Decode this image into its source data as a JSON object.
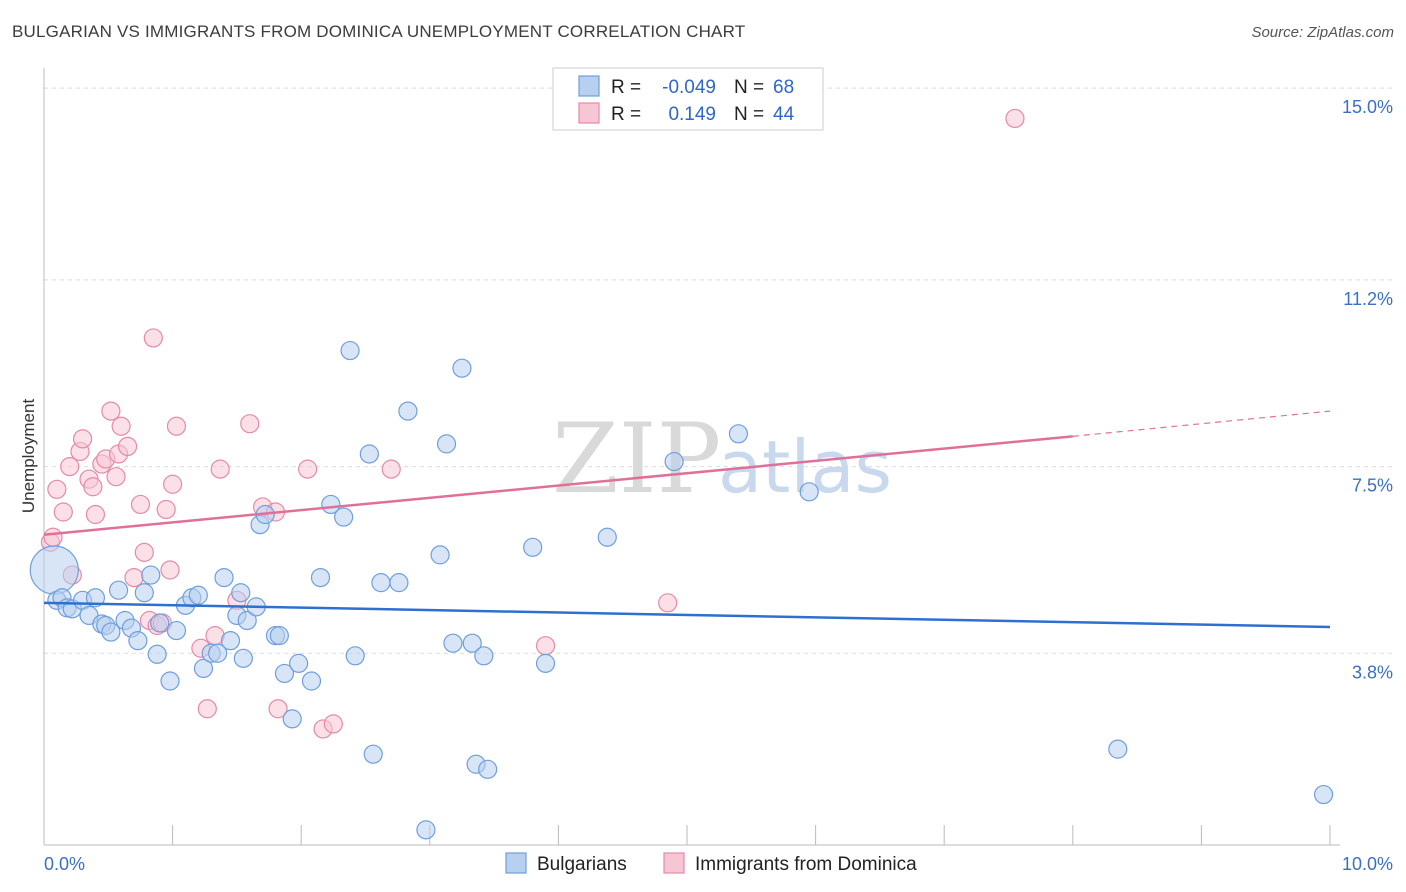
{
  "header": {
    "title": "BULGARIAN VS IMMIGRANTS FROM DOMINICA UNEMPLOYMENT CORRELATION CHART",
    "source": "Source: ZipAtlas.com"
  },
  "watermark": {
    "zip": "ZIP",
    "atlas": "atlas"
  },
  "colors": {
    "blue_fill": "#b8d0f0",
    "blue_stroke": "#6f9fdc",
    "blue_line": "#2f6fd0",
    "pink_fill": "#f7c6d5",
    "pink_stroke": "#e68aa8",
    "pink_line": "#e0709a",
    "grid": "#dcdcdc",
    "tick_text": "#3a6fc4"
  },
  "legend": {
    "rows": [
      {
        "r_label": "R =",
        "r_value": "-0.049",
        "n_label": "N =",
        "n_value": "68"
      },
      {
        "r_label": "R =",
        "r_value": "0.149",
        "n_label": "N =",
        "n_value": "44"
      }
    ]
  },
  "chart_data": {
    "type": "scatter",
    "title": "BULGARIAN VS IMMIGRANTS FROM DOMINICA UNEMPLOYMENT CORRELATION CHART",
    "xlabel": "",
    "ylabel": "Unemployment",
    "xlim": [
      0,
      10
    ],
    "ylim": [
      0,
      15.4
    ],
    "x_tick_labels": {
      "left": "0.0%",
      "right": "10.0%"
    },
    "y_ticks": [
      {
        "value": 3.8,
        "label": "3.8%"
      },
      {
        "value": 7.5,
        "label": "7.5%"
      },
      {
        "value": 11.2,
        "label": "11.2%"
      },
      {
        "value": 15.0,
        "label": "15.0%"
      }
    ],
    "series": [
      {
        "name": "Bulgarians",
        "r": -0.049,
        "n": 68,
        "trend": {
          "x": [
            0,
            10
          ],
          "y": [
            4.8,
            4.32
          ]
        },
        "points": [
          {
            "x": 0.08,
            "y": 5.45,
            "big": true
          },
          {
            "x": 0.1,
            "y": 4.85
          },
          {
            "x": 0.14,
            "y": 4.9
          },
          {
            "x": 0.18,
            "y": 4.7
          },
          {
            "x": 0.22,
            "y": 4.68
          },
          {
            "x": 0.3,
            "y": 4.85
          },
          {
            "x": 0.35,
            "y": 4.55
          },
          {
            "x": 0.4,
            "y": 4.9
          },
          {
            "x": 0.45,
            "y": 4.38
          },
          {
            "x": 0.48,
            "y": 4.35
          },
          {
            "x": 0.52,
            "y": 4.22
          },
          {
            "x": 0.58,
            "y": 5.05
          },
          {
            "x": 0.63,
            "y": 4.45
          },
          {
            "x": 0.68,
            "y": 4.3
          },
          {
            "x": 0.73,
            "y": 4.05
          },
          {
            "x": 0.78,
            "y": 5.0
          },
          {
            "x": 0.83,
            "y": 5.35
          },
          {
            "x": 0.88,
            "y": 3.78
          },
          {
            "x": 0.9,
            "y": 4.4
          },
          {
            "x": 0.98,
            "y": 3.25
          },
          {
            "x": 1.03,
            "y": 4.25
          },
          {
            "x": 1.1,
            "y": 4.75
          },
          {
            "x": 1.15,
            "y": 4.9
          },
          {
            "x": 1.2,
            "y": 4.95
          },
          {
            "x": 1.24,
            "y": 3.5
          },
          {
            "x": 1.3,
            "y": 3.8
          },
          {
            "x": 1.35,
            "y": 3.8
          },
          {
            "x": 1.4,
            "y": 5.3
          },
          {
            "x": 1.45,
            "y": 4.05
          },
          {
            "x": 1.5,
            "y": 4.55
          },
          {
            "x": 1.53,
            "y": 5.0
          },
          {
            "x": 1.55,
            "y": 3.7
          },
          {
            "x": 1.58,
            "y": 4.45
          },
          {
            "x": 1.65,
            "y": 4.72
          },
          {
            "x": 1.68,
            "y": 6.35
          },
          {
            "x": 1.72,
            "y": 6.55
          },
          {
            "x": 1.8,
            "y": 4.15
          },
          {
            "x": 1.83,
            "y": 4.15
          },
          {
            "x": 1.87,
            "y": 3.4
          },
          {
            "x": 1.93,
            "y": 2.5
          },
          {
            "x": 1.98,
            "y": 3.6
          },
          {
            "x": 2.08,
            "y": 3.25
          },
          {
            "x": 2.15,
            "y": 5.3
          },
          {
            "x": 2.23,
            "y": 6.75
          },
          {
            "x": 2.33,
            "y": 6.5
          },
          {
            "x": 2.38,
            "y": 9.8
          },
          {
            "x": 2.42,
            "y": 3.75
          },
          {
            "x": 2.53,
            "y": 7.75
          },
          {
            "x": 2.56,
            "y": 1.8
          },
          {
            "x": 2.62,
            "y": 5.2
          },
          {
            "x": 2.76,
            "y": 5.2
          },
          {
            "x": 2.83,
            "y": 8.6
          },
          {
            "x": 2.97,
            "y": 0.3
          },
          {
            "x": 3.08,
            "y": 5.75
          },
          {
            "x": 3.13,
            "y": 7.95
          },
          {
            "x": 3.18,
            "y": 4.0
          },
          {
            "x": 3.25,
            "y": 9.45
          },
          {
            "x": 3.33,
            "y": 4.0
          },
          {
            "x": 3.36,
            "y": 1.6
          },
          {
            "x": 3.42,
            "y": 3.75
          },
          {
            "x": 3.45,
            "y": 1.5
          },
          {
            "x": 3.8,
            "y": 5.9
          },
          {
            "x": 3.9,
            "y": 3.6
          },
          {
            "x": 4.38,
            "y": 6.1
          },
          {
            "x": 4.9,
            "y": 7.6
          },
          {
            "x": 5.4,
            "y": 8.15
          },
          {
            "x": 5.95,
            "y": 7.0
          },
          {
            "x": 8.35,
            "y": 1.9
          },
          {
            "x": 9.95,
            "y": 1.0
          }
        ]
      },
      {
        "name": "Immigrants from Dominica",
        "r": 0.149,
        "n": 44,
        "trend": {
          "x": [
            0,
            8.0
          ],
          "y": [
            6.15,
            8.1
          ]
        },
        "trend_dashed": {
          "x": [
            8.0,
            10.0
          ],
          "y": [
            8.1,
            8.6
          ]
        },
        "points": [
          {
            "x": 0.05,
            "y": 6.0
          },
          {
            "x": 0.07,
            "y": 6.1
          },
          {
            "x": 0.1,
            "y": 7.05
          },
          {
            "x": 0.15,
            "y": 6.6
          },
          {
            "x": 0.2,
            "y": 7.5
          },
          {
            "x": 0.22,
            "y": 5.35
          },
          {
            "x": 0.28,
            "y": 7.8
          },
          {
            "x": 0.3,
            "y": 8.05
          },
          {
            "x": 0.35,
            "y": 7.25
          },
          {
            "x": 0.38,
            "y": 7.1
          },
          {
            "x": 0.4,
            "y": 6.55
          },
          {
            "x": 0.45,
            "y": 7.55
          },
          {
            "x": 0.48,
            "y": 7.65
          },
          {
            "x": 0.52,
            "y": 8.6
          },
          {
            "x": 0.56,
            "y": 7.3
          },
          {
            "x": 0.58,
            "y": 7.75
          },
          {
            "x": 0.6,
            "y": 8.3
          },
          {
            "x": 0.65,
            "y": 7.9
          },
          {
            "x": 0.7,
            "y": 5.3
          },
          {
            "x": 0.75,
            "y": 6.75
          },
          {
            "x": 0.78,
            "y": 5.8
          },
          {
            "x": 0.82,
            "y": 4.45
          },
          {
            "x": 0.85,
            "y": 10.05
          },
          {
            "x": 0.88,
            "y": 4.35
          },
          {
            "x": 0.92,
            "y": 4.4
          },
          {
            "x": 0.95,
            "y": 6.65
          },
          {
            "x": 0.98,
            "y": 5.45
          },
          {
            "x": 1.0,
            "y": 7.15
          },
          {
            "x": 1.03,
            "y": 8.3
          },
          {
            "x": 1.22,
            "y": 3.9
          },
          {
            "x": 1.27,
            "y": 2.7
          },
          {
            "x": 1.33,
            "y": 4.15
          },
          {
            "x": 1.37,
            "y": 7.45
          },
          {
            "x": 1.5,
            "y": 4.85
          },
          {
            "x": 1.6,
            "y": 8.35
          },
          {
            "x": 1.7,
            "y": 6.7
          },
          {
            "x": 1.8,
            "y": 6.6
          },
          {
            "x": 1.82,
            "y": 2.7
          },
          {
            "x": 2.05,
            "y": 7.45
          },
          {
            "x": 2.17,
            "y": 2.3
          },
          {
            "x": 2.25,
            "y": 2.4
          },
          {
            "x": 2.7,
            "y": 7.45
          },
          {
            "x": 3.9,
            "y": 3.95
          },
          {
            "x": 4.85,
            "y": 4.8
          },
          {
            "x": 7.55,
            "y": 14.4
          }
        ]
      }
    ]
  }
}
